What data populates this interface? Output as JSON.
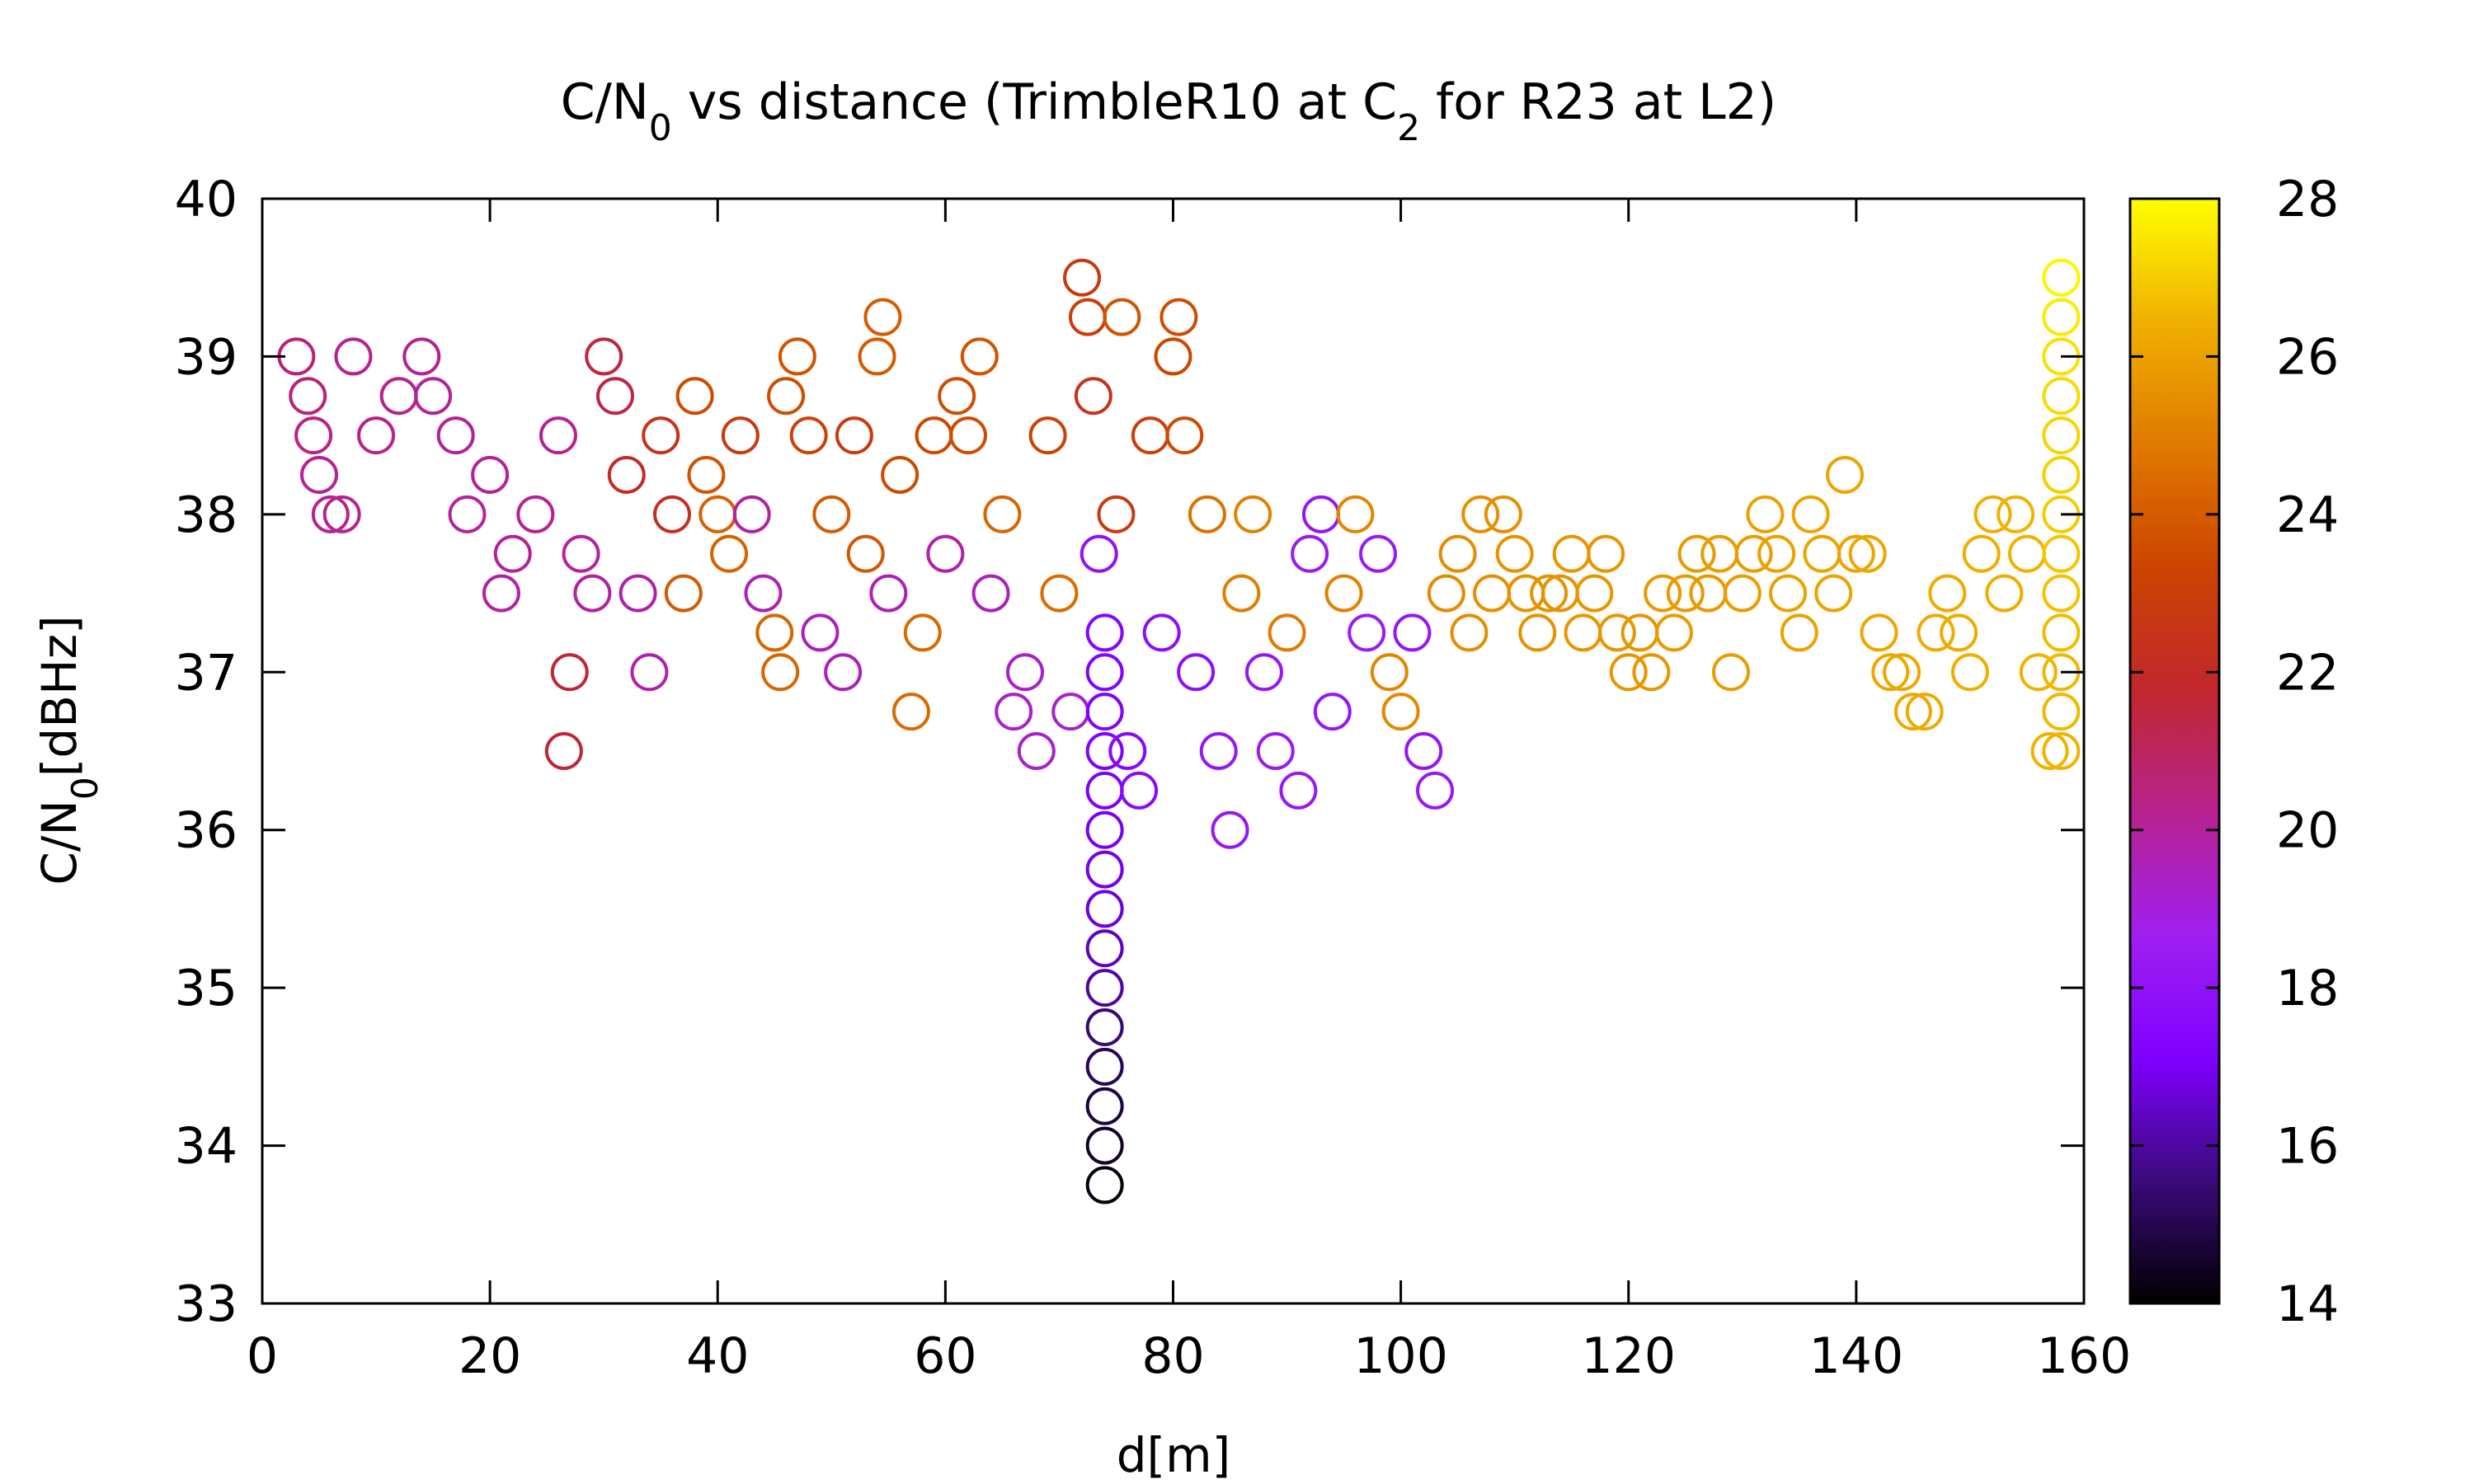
{
  "chart_data": {
    "type": "scatter",
    "title": {
      "main_1": "C/N",
      "main_sub_1": "0",
      "main_2": " vs distance (TrimbleR10 at C",
      "main_sub_2": "2",
      "main_3": " for R23 at L2)"
    },
    "xlabel": "d[m]",
    "ylabel": {
      "part1": "C/N",
      "sub": "0",
      "part2": "[dBHz]"
    },
    "xlim": [
      0,
      160
    ],
    "ylim": [
      33,
      40
    ],
    "xticks": [
      "0",
      "20",
      "40",
      "60",
      "80",
      "100",
      "120",
      "140",
      "160"
    ],
    "yticks": [
      "33",
      "34",
      "35",
      "36",
      "37",
      "38",
      "39",
      "40"
    ],
    "colorbar": {
      "range": [
        14,
        28
      ],
      "ticks": [
        "14",
        "16",
        "18",
        "20",
        "22",
        "24",
        "26",
        "28"
      ],
      "palette": [
        "#000000",
        "#3a0a7a",
        "#7f00ff",
        "#a020f0",
        "#b7228f",
        "#c1272d",
        "#cc4400",
        "#e07a00",
        "#f0b000",
        "#ffff00"
      ]
    },
    "marker": "open-circle",
    "grid": false,
    "legend": "none",
    "points": [
      {
        "x": 3,
        "y": 39,
        "c": 20.6
      },
      {
        "x": 4,
        "y": 38.75,
        "c": 20.6
      },
      {
        "x": 4.5,
        "y": 38.5,
        "c": 20.4
      },
      {
        "x": 5,
        "y": 38.25,
        "c": 20.2
      },
      {
        "x": 6,
        "y": 38,
        "c": 20.2
      },
      {
        "x": 7,
        "y": 38,
        "c": 20.2
      },
      {
        "x": 8,
        "y": 39,
        "c": 20.2
      },
      {
        "x": 10,
        "y": 38.5,
        "c": 20.3
      },
      {
        "x": 12,
        "y": 38.75,
        "c": 20.3
      },
      {
        "x": 14,
        "y": 39,
        "c": 20.2
      },
      {
        "x": 15,
        "y": 38.75,
        "c": 20.1
      },
      {
        "x": 17,
        "y": 38.5,
        "c": 20.1
      },
      {
        "x": 18,
        "y": 38,
        "c": 20
      },
      {
        "x": 20,
        "y": 38.25,
        "c": 20
      },
      {
        "x": 21,
        "y": 37.5,
        "c": 20
      },
      {
        "x": 22,
        "y": 37.75,
        "c": 20.1
      },
      {
        "x": 24,
        "y": 38,
        "c": 20.2
      },
      {
        "x": 26,
        "y": 38.5,
        "c": 20.2
      },
      {
        "x": 26.5,
        "y": 36.5,
        "c": 21.6
      },
      {
        "x": 27,
        "y": 37,
        "c": 21.6
      },
      {
        "x": 28,
        "y": 37.75,
        "c": 20
      },
      {
        "x": 29,
        "y": 37.5,
        "c": 20
      },
      {
        "x": 30,
        "y": 39,
        "c": 21.5
      },
      {
        "x": 31,
        "y": 38.75,
        "c": 21.3
      },
      {
        "x": 32,
        "y": 38.25,
        "c": 22
      },
      {
        "x": 33,
        "y": 37.5,
        "c": 19.8
      },
      {
        "x": 34,
        "y": 37,
        "c": 19.8
      },
      {
        "x": 35,
        "y": 38.5,
        "c": 22.4
      },
      {
        "x": 36,
        "y": 38,
        "c": 22.2
      },
      {
        "x": 37,
        "y": 37.5,
        "c": 24
      },
      {
        "x": 38,
        "y": 38.75,
        "c": 23.5
      },
      {
        "x": 39,
        "y": 38.25,
        "c": 23.8
      },
      {
        "x": 40,
        "y": 38,
        "c": 24.2
      },
      {
        "x": 41,
        "y": 37.75,
        "c": 24.2
      },
      {
        "x": 42,
        "y": 38.5,
        "c": 22.8
      },
      {
        "x": 43,
        "y": 38,
        "c": 20
      },
      {
        "x": 44,
        "y": 37.5,
        "c": 19.6
      },
      {
        "x": 45,
        "y": 37.25,
        "c": 24.3
      },
      {
        "x": 45.5,
        "y": 37,
        "c": 24.3
      },
      {
        "x": 46,
        "y": 38.75,
        "c": 23.6
      },
      {
        "x": 47,
        "y": 39,
        "c": 23.8
      },
      {
        "x": 48,
        "y": 38.5,
        "c": 23.2
      },
      {
        "x": 49,
        "y": 37.25,
        "c": 19.5
      },
      {
        "x": 50,
        "y": 38,
        "c": 24
      },
      {
        "x": 51,
        "y": 37,
        "c": 19.6
      },
      {
        "x": 52,
        "y": 38.5,
        "c": 22.8
      },
      {
        "x": 53,
        "y": 37.75,
        "c": 23.9
      },
      {
        "x": 54,
        "y": 39,
        "c": 24
      },
      {
        "x": 54.5,
        "y": 39.25,
        "c": 24
      },
      {
        "x": 55,
        "y": 37.5,
        "c": 19.6
      },
      {
        "x": 56,
        "y": 38.25,
        "c": 23.5
      },
      {
        "x": 57,
        "y": 36.75,
        "c": 24.4
      },
      {
        "x": 58,
        "y": 37.25,
        "c": 24.4
      },
      {
        "x": 59,
        "y": 38.5,
        "c": 23.4
      },
      {
        "x": 60,
        "y": 37.75,
        "c": 19.8
      },
      {
        "x": 61,
        "y": 38.75,
        "c": 23.6
      },
      {
        "x": 62,
        "y": 38.5,
        "c": 23.6
      },
      {
        "x": 63,
        "y": 39,
        "c": 23.8
      },
      {
        "x": 64,
        "y": 37.5,
        "c": 19.5
      },
      {
        "x": 65,
        "y": 38,
        "c": 24.3
      },
      {
        "x": 66,
        "y": 36.75,
        "c": 19.3
      },
      {
        "x": 67,
        "y": 37,
        "c": 19.3
      },
      {
        "x": 68,
        "y": 36.5,
        "c": 19.3
      },
      {
        "x": 69,
        "y": 38.5,
        "c": 23.2
      },
      {
        "x": 70,
        "y": 37.5,
        "c": 24.5
      },
      {
        "x": 71,
        "y": 36.75,
        "c": 19.2
      },
      {
        "x": 72,
        "y": 39.5,
        "c": 22.8
      },
      {
        "x": 72.5,
        "y": 39.25,
        "c": 23
      },
      {
        "x": 73,
        "y": 38.75,
        "c": 22.4
      },
      {
        "x": 73.5,
        "y": 37.75,
        "c": 18
      },
      {
        "x": 74,
        "y": 37.25,
        "c": 17.4
      },
      {
        "x": 74,
        "y": 37,
        "c": 17.3
      },
      {
        "x": 74,
        "y": 36.75,
        "c": 17.2
      },
      {
        "x": 74,
        "y": 36.5,
        "c": 17.2
      },
      {
        "x": 74,
        "y": 36.25,
        "c": 17.1
      },
      {
        "x": 74,
        "y": 36,
        "c": 17
      },
      {
        "x": 74,
        "y": 35.75,
        "c": 16.9
      },
      {
        "x": 74,
        "y": 35.5,
        "c": 16.7
      },
      {
        "x": 74,
        "y": 35.25,
        "c": 16.4
      },
      {
        "x": 74,
        "y": 35,
        "c": 16
      },
      {
        "x": 74,
        "y": 34.75,
        "c": 15.5
      },
      {
        "x": 74,
        "y": 34.5,
        "c": 15.1
      },
      {
        "x": 74,
        "y": 34.25,
        "c": 14.8
      },
      {
        "x": 74,
        "y": 34,
        "c": 14.5
      },
      {
        "x": 74,
        "y": 33.75,
        "c": 14.2
      },
      {
        "x": 75,
        "y": 38,
        "c": 22.8
      },
      {
        "x": 75.5,
        "y": 39.25,
        "c": 23.8
      },
      {
        "x": 76,
        "y": 36.5,
        "c": 17.6
      },
      {
        "x": 77,
        "y": 36.25,
        "c": 17.6
      },
      {
        "x": 78,
        "y": 38.5,
        "c": 23
      },
      {
        "x": 79,
        "y": 37.25,
        "c": 17.8
      },
      {
        "x": 80,
        "y": 39,
        "c": 23.4
      },
      {
        "x": 80.5,
        "y": 39.25,
        "c": 23.6
      },
      {
        "x": 81,
        "y": 38.5,
        "c": 23.5
      },
      {
        "x": 82,
        "y": 37,
        "c": 17.8
      },
      {
        "x": 83,
        "y": 38,
        "c": 24.6
      },
      {
        "x": 84,
        "y": 36.5,
        "c": 18.2
      },
      {
        "x": 85,
        "y": 36,
        "c": 18.2
      },
      {
        "x": 86,
        "y": 37.5,
        "c": 25
      },
      {
        "x": 87,
        "y": 38,
        "c": 25.1
      },
      {
        "x": 88,
        "y": 37,
        "c": 18.2
      },
      {
        "x": 89,
        "y": 36.5,
        "c": 18.4
      },
      {
        "x": 90,
        "y": 37.25,
        "c": 24.9
      },
      {
        "x": 91,
        "y": 36.25,
        "c": 18.3
      },
      {
        "x": 92,
        "y": 37.75,
        "c": 18.4
      },
      {
        "x": 93,
        "y": 38,
        "c": 18.2
      },
      {
        "x": 94,
        "y": 36.75,
        "c": 18.2
      },
      {
        "x": 95,
        "y": 37.5,
        "c": 25.1
      },
      {
        "x": 96,
        "y": 38,
        "c": 25.2
      },
      {
        "x": 97,
        "y": 37.25,
        "c": 18.4
      },
      {
        "x": 98,
        "y": 37.75,
        "c": 18.4
      },
      {
        "x": 99,
        "y": 37,
        "c": 25.2
      },
      {
        "x": 100,
        "y": 36.75,
        "c": 25.3
      },
      {
        "x": 101,
        "y": 37.25,
        "c": 18.2
      },
      {
        "x": 102,
        "y": 36.5,
        "c": 18.2
      },
      {
        "x": 103,
        "y": 36.25,
        "c": 18.3
      },
      {
        "x": 104,
        "y": 37.5,
        "c": 25.4
      },
      {
        "x": 105,
        "y": 37.75,
        "c": 25.4
      },
      {
        "x": 106,
        "y": 37.25,
        "c": 25.4
      },
      {
        "x": 107,
        "y": 38,
        "c": 25.5
      },
      {
        "x": 108,
        "y": 37.5,
        "c": 25.5
      },
      {
        "x": 109,
        "y": 38,
        "c": 25.5
      },
      {
        "x": 110,
        "y": 37.75,
        "c": 25.6
      },
      {
        "x": 111,
        "y": 37.5,
        "c": 25.6
      },
      {
        "x": 112,
        "y": 37.25,
        "c": 25.6
      },
      {
        "x": 113,
        "y": 37.5,
        "c": 25.6
      },
      {
        "x": 114,
        "y": 37.5,
        "c": 25.6
      },
      {
        "x": 115,
        "y": 37.75,
        "c": 25.7
      },
      {
        "x": 116,
        "y": 37.25,
        "c": 25.7
      },
      {
        "x": 117,
        "y": 37.5,
        "c": 25.7
      },
      {
        "x": 118,
        "y": 37.75,
        "c": 25.7
      },
      {
        "x": 119,
        "y": 37.25,
        "c": 25.7
      },
      {
        "x": 120,
        "y": 37,
        "c": 25.7
      },
      {
        "x": 121,
        "y": 37.25,
        "c": 25.7
      },
      {
        "x": 122,
        "y": 37,
        "c": 25.7
      },
      {
        "x": 123,
        "y": 37.5,
        "c": 25.8
      },
      {
        "x": 124,
        "y": 37.25,
        "c": 25.8
      },
      {
        "x": 125,
        "y": 37.5,
        "c": 25.8
      },
      {
        "x": 126,
        "y": 37.75,
        "c": 25.8
      },
      {
        "x": 127,
        "y": 37.5,
        "c": 25.8
      },
      {
        "x": 128,
        "y": 37.75,
        "c": 25.9
      },
      {
        "x": 129,
        "y": 37,
        "c": 25.9
      },
      {
        "x": 130,
        "y": 37.5,
        "c": 25.9
      },
      {
        "x": 131,
        "y": 37.75,
        "c": 25.9
      },
      {
        "x": 132,
        "y": 38,
        "c": 26
      },
      {
        "x": 133,
        "y": 37.75,
        "c": 26
      },
      {
        "x": 134,
        "y": 37.5,
        "c": 26
      },
      {
        "x": 135,
        "y": 37.25,
        "c": 26
      },
      {
        "x": 136,
        "y": 38,
        "c": 26.1
      },
      {
        "x": 137,
        "y": 37.75,
        "c": 26.1
      },
      {
        "x": 138,
        "y": 37.5,
        "c": 26.1
      },
      {
        "x": 139,
        "y": 38.25,
        "c": 26.1
      },
      {
        "x": 140,
        "y": 37.75,
        "c": 26.1
      },
      {
        "x": 141,
        "y": 37.75,
        "c": 26.2
      },
      {
        "x": 142,
        "y": 37.25,
        "c": 26.2
      },
      {
        "x": 143,
        "y": 37,
        "c": 26.2
      },
      {
        "x": 144,
        "y": 37,
        "c": 26.2
      },
      {
        "x": 145,
        "y": 36.75,
        "c": 26.2
      },
      {
        "x": 146,
        "y": 36.75,
        "c": 26.3
      },
      {
        "x": 147,
        "y": 37.25,
        "c": 26.3
      },
      {
        "x": 148,
        "y": 37.5,
        "c": 26.3
      },
      {
        "x": 149,
        "y": 37.25,
        "c": 26.3
      },
      {
        "x": 150,
        "y": 37,
        "c": 26.4
      },
      {
        "x": 151,
        "y": 37.75,
        "c": 26.4
      },
      {
        "x": 152,
        "y": 38,
        "c": 26.4
      },
      {
        "x": 153,
        "y": 37.5,
        "c": 26.4
      },
      {
        "x": 154,
        "y": 38,
        "c": 26.5
      },
      {
        "x": 155,
        "y": 37.75,
        "c": 26.5
      },
      {
        "x": 156,
        "y": 37,
        "c": 26.5
      },
      {
        "x": 157,
        "y": 36.5,
        "c": 26.5
      },
      {
        "x": 158,
        "y": 39.5,
        "c": 27.8
      },
      {
        "x": 158,
        "y": 39.25,
        "c": 27.6
      },
      {
        "x": 158,
        "y": 39,
        "c": 27.4
      },
      {
        "x": 158,
        "y": 38.75,
        "c": 27.3
      },
      {
        "x": 158,
        "y": 38.5,
        "c": 27.2
      },
      {
        "x": 158,
        "y": 38.25,
        "c": 27.1
      },
      {
        "x": 158,
        "y": 38,
        "c": 27
      },
      {
        "x": 158,
        "y": 37.75,
        "c": 26.9
      },
      {
        "x": 158,
        "y": 37.5,
        "c": 26.8
      },
      {
        "x": 158,
        "y": 37.25,
        "c": 26.7
      },
      {
        "x": 158,
        "y": 37,
        "c": 26.6
      },
      {
        "x": 158,
        "y": 36.75,
        "c": 26.6
      },
      {
        "x": 158,
        "y": 36.5,
        "c": 26.5
      }
    ]
  }
}
